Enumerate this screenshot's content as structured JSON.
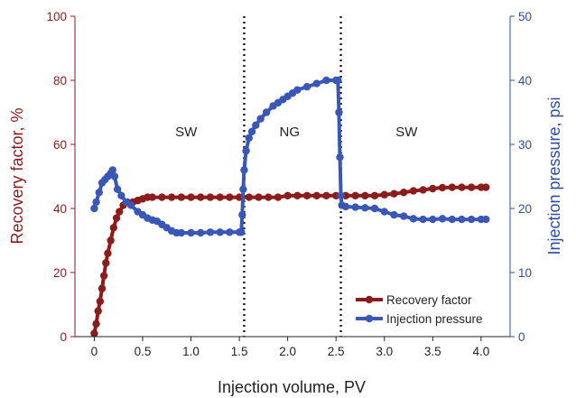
{
  "chart_data": {
    "type": "line",
    "xlabel": "Injection volume, PV",
    "ylabel_left": "Recovery factor, %",
    "ylabel_right": "Injection pressure, psi",
    "xlim": [
      -0.2,
      4.3
    ],
    "ylim_left": [
      0,
      100
    ],
    "ylim_right": [
      0,
      50
    ],
    "x_ticks": [
      0,
      0.5,
      1.0,
      1.5,
      2.0,
      2.5,
      3.0,
      3.5,
      4.0
    ],
    "x_tick_labels": [
      "0",
      "0.5",
      "1.0",
      "1.5",
      "2.0",
      "2.5",
      "3.0",
      "3.5",
      "4.0"
    ],
    "y_left_ticks": [
      0,
      20,
      40,
      60,
      80,
      100
    ],
    "y_right_ticks": [
      0,
      10,
      20,
      30,
      40,
      50
    ],
    "left_axis_color": "#8b1c1c",
    "right_axis_color": "#2f4da0",
    "vlines": [
      1.55,
      2.55
    ],
    "regions": [
      {
        "label": "SW",
        "x": 0.95,
        "y": 62.5
      },
      {
        "label": "NG",
        "x": 2.02,
        "y": 62.5
      },
      {
        "label": "SW",
        "x": 3.23,
        "y": 62.5
      }
    ],
    "legend_position": "bottom-right",
    "series": [
      {
        "name": "Recovery factor",
        "axis": "left",
        "color": "#8b1c1c",
        "points": [
          [
            0.0,
            1
          ],
          [
            0.02,
            4
          ],
          [
            0.04,
            8
          ],
          [
            0.06,
            11
          ],
          [
            0.08,
            15
          ],
          [
            0.1,
            19
          ],
          [
            0.12,
            23
          ],
          [
            0.14,
            26
          ],
          [
            0.17,
            30
          ],
          [
            0.2,
            34
          ],
          [
            0.23,
            37
          ],
          [
            0.26,
            39
          ],
          [
            0.3,
            41
          ],
          [
            0.34,
            42
          ],
          [
            0.4,
            42
          ],
          [
            0.45,
            42.5
          ],
          [
            0.5,
            43
          ],
          [
            0.55,
            43.5
          ],
          [
            0.6,
            43.5
          ],
          [
            0.7,
            43.5
          ],
          [
            0.8,
            43.5
          ],
          [
            0.9,
            43.5
          ],
          [
            1.0,
            43.5
          ],
          [
            1.1,
            43.5
          ],
          [
            1.2,
            43.5
          ],
          [
            1.3,
            43.5
          ],
          [
            1.4,
            43.5
          ],
          [
            1.5,
            43.5
          ],
          [
            1.6,
            43.5
          ],
          [
            1.7,
            43.5
          ],
          [
            1.8,
            43.5
          ],
          [
            1.9,
            43.5
          ],
          [
            2.0,
            44
          ],
          [
            2.1,
            44
          ],
          [
            2.2,
            44
          ],
          [
            2.3,
            44
          ],
          [
            2.4,
            44
          ],
          [
            2.5,
            44
          ],
          [
            2.6,
            44
          ],
          [
            2.7,
            44
          ],
          [
            2.8,
            44
          ],
          [
            2.9,
            44
          ],
          [
            3.0,
            44.3
          ],
          [
            3.1,
            44.6
          ],
          [
            3.2,
            45
          ],
          [
            3.3,
            45.5
          ],
          [
            3.4,
            45.8
          ],
          [
            3.5,
            46.2
          ],
          [
            3.6,
            46.5
          ],
          [
            3.7,
            46.6
          ],
          [
            3.8,
            46.6
          ],
          [
            3.9,
            46.6
          ],
          [
            4.0,
            46.6
          ],
          [
            4.05,
            46.6
          ]
        ]
      },
      {
        "name": "Injection pressure",
        "axis": "right",
        "color": "#3a57b5",
        "points": [
          [
            0.0,
            20
          ],
          [
            0.02,
            21
          ],
          [
            0.05,
            22.5
          ],
          [
            0.08,
            24
          ],
          [
            0.11,
            24.5
          ],
          [
            0.14,
            25
          ],
          [
            0.17,
            25.5
          ],
          [
            0.19,
            26
          ],
          [
            0.21,
            25
          ],
          [
            0.24,
            23
          ],
          [
            0.28,
            22
          ],
          [
            0.33,
            21
          ],
          [
            0.38,
            20.5
          ],
          [
            0.45,
            19.5
          ],
          [
            0.5,
            19
          ],
          [
            0.55,
            18.5
          ],
          [
            0.6,
            18.2
          ],
          [
            0.65,
            18
          ],
          [
            0.7,
            17.5
          ],
          [
            0.75,
            17
          ],
          [
            0.8,
            16.5
          ],
          [
            0.85,
            16.2
          ],
          [
            0.9,
            16.2
          ],
          [
            1.0,
            16.2
          ],
          [
            1.1,
            16.2
          ],
          [
            1.2,
            16.3
          ],
          [
            1.3,
            16.3
          ],
          [
            1.4,
            16.3
          ],
          [
            1.5,
            16.3
          ],
          [
            1.52,
            16.3
          ],
          [
            1.53,
            19
          ],
          [
            1.54,
            23
          ],
          [
            1.55,
            26
          ],
          [
            1.57,
            29
          ],
          [
            1.6,
            31
          ],
          [
            1.63,
            32
          ],
          [
            1.67,
            33
          ],
          [
            1.72,
            34
          ],
          [
            1.78,
            35
          ],
          [
            1.85,
            36
          ],
          [
            1.9,
            36.5
          ],
          [
            1.95,
            37
          ],
          [
            2.0,
            37.5
          ],
          [
            2.05,
            38
          ],
          [
            2.1,
            38.5
          ],
          [
            2.2,
            39
          ],
          [
            2.3,
            39.5
          ],
          [
            2.4,
            40
          ],
          [
            2.5,
            40
          ],
          [
            2.52,
            40
          ],
          [
            2.53,
            35
          ],
          [
            2.54,
            28
          ],
          [
            2.55,
            22
          ],
          [
            2.56,
            20.5
          ],
          [
            2.6,
            20.3
          ],
          [
            2.7,
            20.2
          ],
          [
            2.8,
            20.1
          ],
          [
            2.9,
            20
          ],
          [
            3.0,
            19.5
          ],
          [
            3.1,
            19
          ],
          [
            3.2,
            18.8
          ],
          [
            3.3,
            18.4
          ],
          [
            3.4,
            18.3
          ],
          [
            3.5,
            18.3
          ],
          [
            3.6,
            18.4
          ],
          [
            3.7,
            18.3
          ],
          [
            3.8,
            18.3
          ],
          [
            3.9,
            18.3
          ],
          [
            4.0,
            18.3
          ],
          [
            4.05,
            18.3
          ]
        ]
      }
    ]
  }
}
